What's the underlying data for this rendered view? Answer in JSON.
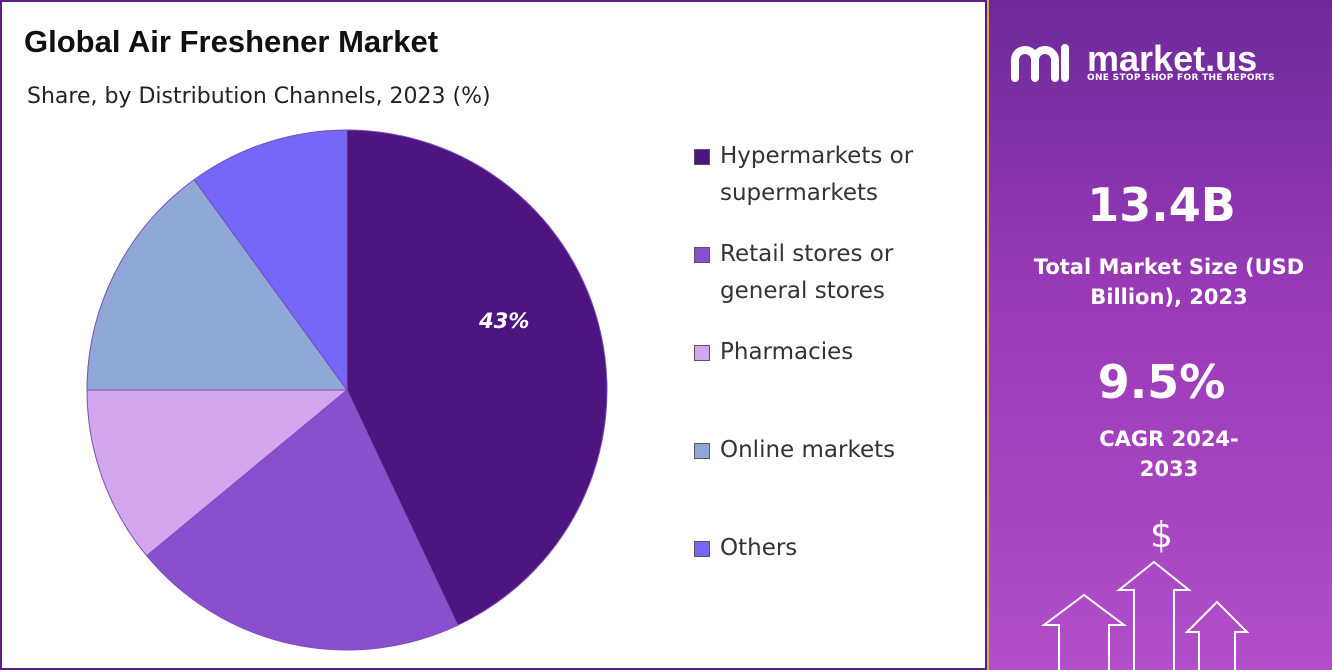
{
  "chart_data": {
    "type": "pie",
    "title": "Global Air Freshener Market",
    "subtitle": "Share, by Distribution Channels, 2023 (%)",
    "categories": [
      "Hypermarkets or supermarkets",
      "Retail stores or general stores",
      "Pharmacies",
      "Online markets",
      "Others"
    ],
    "values": [
      43,
      21,
      11,
      15,
      10
    ],
    "value_labels": [
      "43%",
      null,
      null,
      null,
      null
    ],
    "colors": [
      "#4e1580",
      "#8a4fcf",
      "#d4a6ee",
      "#8fa8d8",
      "#7467fa"
    ]
  },
  "panel": {
    "logo": "market.us",
    "tagline": "ONE STOP SHOP FOR THE REPORTS",
    "market_size": "13.4B",
    "market_size_label": "Total Market Size (USD Billion), 2023",
    "cagr": "9.5%",
    "cagr_label": "CAGR 2024-2033",
    "icon": "$"
  }
}
